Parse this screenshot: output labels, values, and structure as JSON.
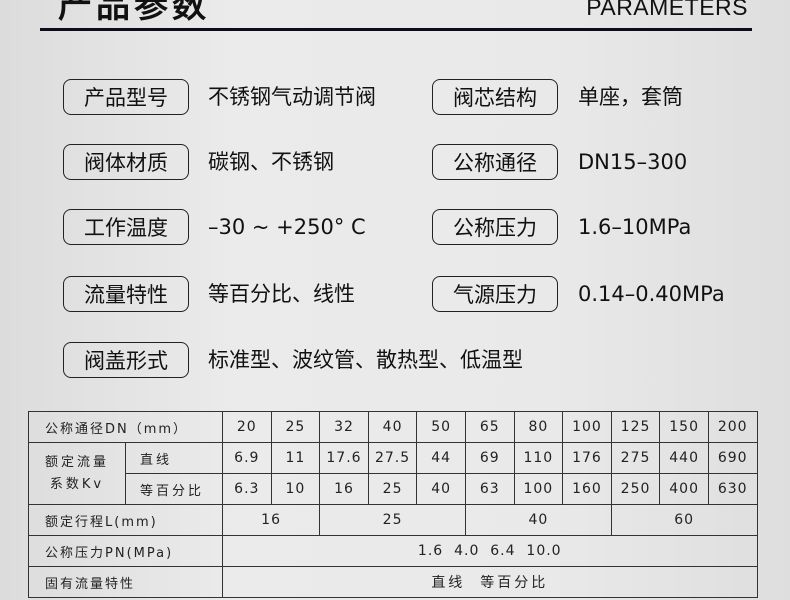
{
  "header": {
    "title": "产品参数",
    "subtitle": "PARAMETERS"
  },
  "params": [
    {
      "label": "产品型号",
      "value": "不锈钢气动调节阀"
    },
    {
      "label": "阀芯结构",
      "value": "单座，套筒"
    },
    {
      "label": "阀体材质",
      "value": "碳钢、不锈钢"
    },
    {
      "label": "公称通径",
      "value": "DN15–300"
    },
    {
      "label": "工作温度",
      "value": "–30 ~ +250°  C"
    },
    {
      "label": "公称压力",
      "value": "1.6–10MPa"
    },
    {
      "label": "流量特性",
      "value": "等百分比、线性"
    },
    {
      "label": "气源压力",
      "value": "0.14–0.40MPa"
    },
    {
      "label": "阀盖形式",
      "value": "标准型、波纹管、散热型、低温型"
    }
  ],
  "table": {
    "dn_label": "公称通径DN（mm）",
    "dn": [
      "20",
      "25",
      "32",
      "40",
      "50",
      "65",
      "80",
      "100",
      "125",
      "150",
      "200"
    ],
    "kv_label": "额定流量系数Kv",
    "linear_label": "直线",
    "linear": [
      "6.9",
      "11",
      "17.6",
      "27.5",
      "44",
      "69",
      "110",
      "176",
      "275",
      "440",
      "690"
    ],
    "eqp_label": "等百分比",
    "eqp": [
      "6.3",
      "10",
      "16",
      "25",
      "40",
      "63",
      "100",
      "160",
      "250",
      "400",
      "630"
    ],
    "stroke_label": "额定行程L(mm)",
    "stroke": [
      "16",
      "25",
      "40",
      "60"
    ],
    "pn_label": "公称压力PN(MPa)",
    "pn": "1.6  4.0  6.4  10.0",
    "char_label": "固有流量特性",
    "char": "直线  等百分比"
  }
}
